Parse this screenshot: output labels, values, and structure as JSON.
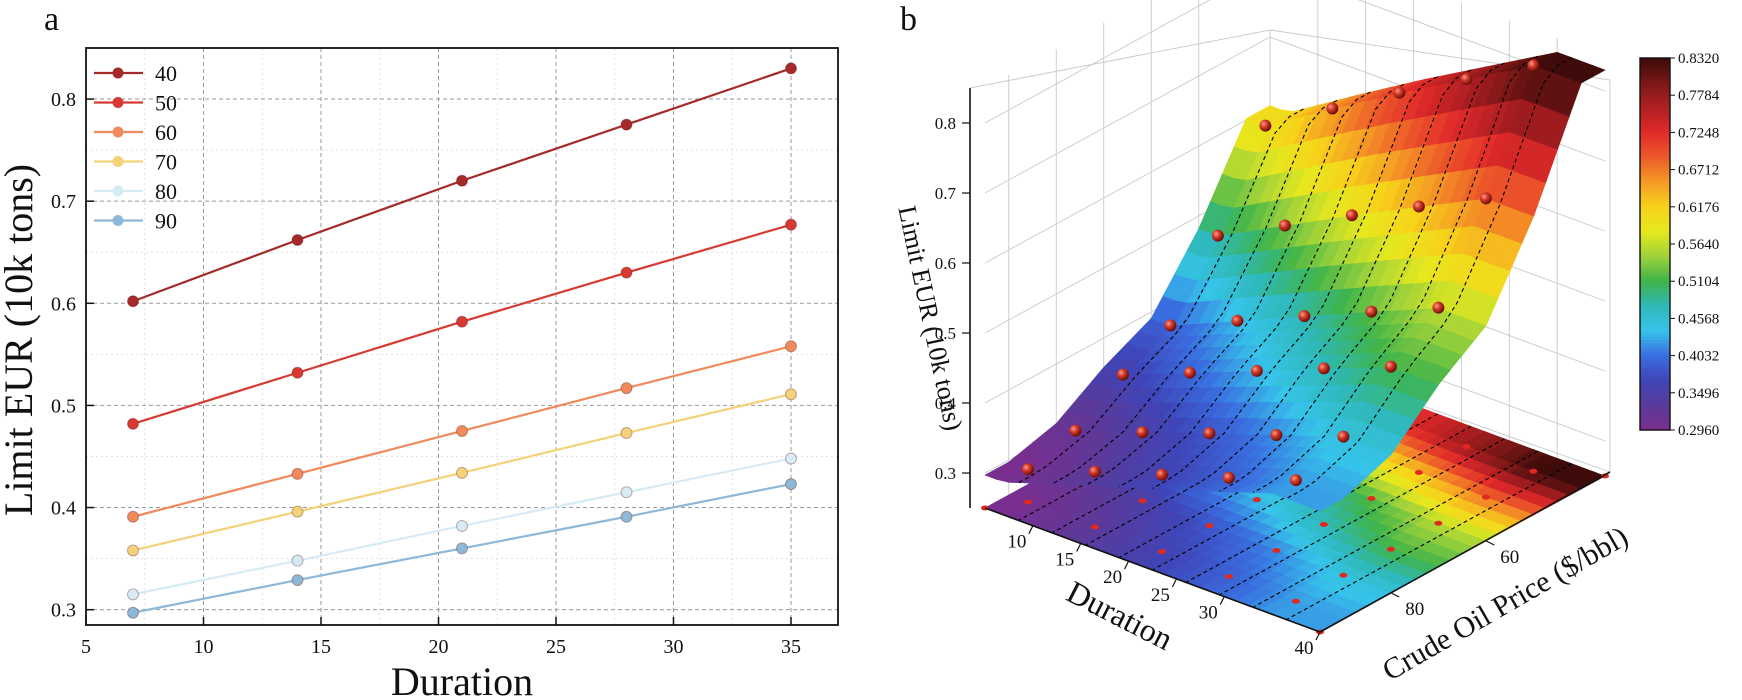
{
  "chart_data": [
    {
      "panel": "a",
      "type": "line",
      "xlabel": "Duration",
      "ylabel": "Limit EUR (10k tons)",
      "xlim": [
        5,
        37
      ],
      "ylim": [
        0.285,
        0.85
      ],
      "xticks": [
        "5",
        "10",
        "15",
        "20",
        "25",
        "30",
        "35"
      ],
      "yticks": [
        "0.3",
        "0.4",
        "0.5",
        "0.6",
        "0.7",
        "0.8"
      ],
      "grid": true,
      "legend_position": "top-left",
      "x": [
        7,
        14,
        21,
        28,
        35
      ],
      "series": [
        {
          "name": "40",
          "color": "#a52a2a",
          "values": [
            0.602,
            0.662,
            0.72,
            0.775,
            0.83
          ]
        },
        {
          "name": "50",
          "color": "#d73a32",
          "values": [
            0.482,
            0.532,
            0.582,
            0.63,
            0.677
          ]
        },
        {
          "name": "60",
          "color": "#f08a5c",
          "values": [
            0.391,
            0.433,
            0.475,
            0.517,
            0.558
          ]
        },
        {
          "name": "70",
          "color": "#f5d27a",
          "values": [
            0.358,
            0.396,
            0.434,
            0.473,
            0.511
          ]
        },
        {
          "name": "80",
          "color": "#d6ebf5",
          "values": [
            0.315,
            0.348,
            0.382,
            0.415,
            0.448
          ]
        },
        {
          "name": "90",
          "color": "#8fb8d8",
          "values": [
            0.297,
            0.329,
            0.36,
            0.391,
            0.423
          ]
        }
      ]
    },
    {
      "panel": "b",
      "type": "surface3d",
      "xlabel": "Duration",
      "ylabel": "Crude Oil Price ($/bbl)",
      "zlabel": "Limit EUR (10k tons)",
      "xticks": [
        "10",
        "15",
        "20",
        "25",
        "30",
        "40"
      ],
      "yticks": [
        "60",
        "80"
      ],
      "zticks": [
        "0.3",
        "0.4",
        "0.5",
        "0.6",
        "0.7",
        "0.8"
      ],
      "zlim": [
        0.25,
        0.85
      ],
      "durations": [
        7,
        14,
        21,
        28,
        35
      ],
      "prices": [
        40,
        50,
        60,
        70,
        80,
        90
      ],
      "z_values": [
        [
          0.602,
          0.482,
          0.391,
          0.358,
          0.315,
          0.297
        ],
        [
          0.662,
          0.532,
          0.433,
          0.396,
          0.348,
          0.329
        ],
        [
          0.72,
          0.582,
          0.475,
          0.434,
          0.382,
          0.36
        ],
        [
          0.775,
          0.63,
          0.517,
          0.473,
          0.415,
          0.391
        ],
        [
          0.83,
          0.677,
          0.558,
          0.511,
          0.448,
          0.423
        ]
      ],
      "colorbar": {
        "ticks": [
          "0.8320",
          "0.7784",
          "0.7248",
          "0.6712",
          "0.6176",
          "0.5640",
          "0.5104",
          "0.4568",
          "0.4032",
          "0.3496",
          "0.2960"
        ],
        "colors": [
          "#3b0a0a",
          "#7a1717",
          "#b01f22",
          "#e12a2a",
          "#ec5a2a",
          "#f59a25",
          "#f7d21a",
          "#e6e81e",
          "#9fd23a",
          "#3fb44a",
          "#2fb8b8",
          "#36c4ea",
          "#3a6ee0",
          "#3f45b8",
          "#5a3a9a",
          "#7a2f8f"
        ]
      }
    }
  ],
  "panel_labels": {
    "a": "a",
    "b": "b"
  }
}
